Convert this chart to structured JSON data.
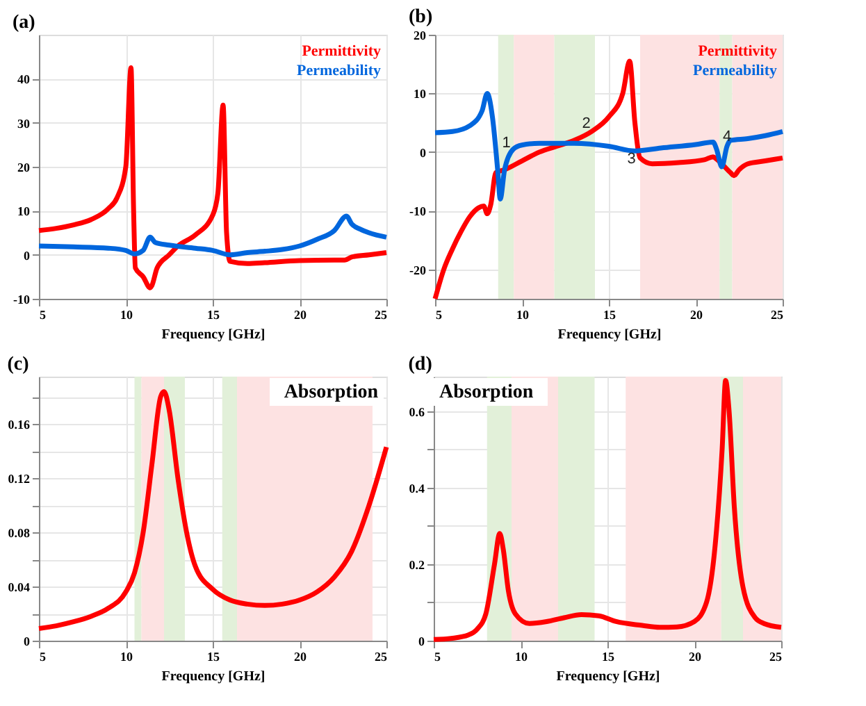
{
  "chart_data": [
    {
      "type": "line",
      "title": "(a)",
      "xlabel": "Frequency [GHz]",
      "xlim": [
        5,
        25
      ],
      "xticks": [
        5,
        10,
        15,
        20,
        25
      ],
      "ylim": [
        -10,
        50
      ],
      "yticks": [
        -10,
        0,
        10,
        20,
        30,
        40
      ],
      "grid": true,
      "legend": "top right",
      "series": [
        {
          "name": "Permittivity",
          "color": "#ff0000",
          "x": [
            5,
            6,
            7,
            8,
            9,
            9.5,
            10,
            10.3,
            10.45,
            10.55,
            11,
            11.4,
            11.5,
            11.8,
            12.5,
            13,
            14,
            15,
            15.3,
            15.6,
            15.8,
            16,
            17,
            18,
            20,
            22,
            22.6,
            23,
            24,
            25
          ],
          "values": [
            5.5,
            6,
            6.8,
            8,
            10.5,
            13,
            20,
            42.5,
            10,
            -3,
            -5,
            -7.5,
            -7,
            -3,
            0,
            2,
            4.5,
            9,
            14,
            34,
            5,
            -1.5,
            -2,
            -1.8,
            -1.3,
            -1.2,
            -1.2,
            -0.5,
            0,
            0.5
          ]
        },
        {
          "name": "Permeability",
          "color": "#0066dd",
          "x": [
            5,
            7,
            9,
            10,
            10.5,
            11,
            11.4,
            11.7,
            12.5,
            14,
            15,
            16,
            17,
            18,
            19,
            20,
            21,
            22,
            22.7,
            23,
            23.5,
            24,
            25
          ],
          "values": [
            2,
            1.8,
            1.5,
            1,
            0.2,
            1,
            4,
            2.8,
            2.2,
            1.5,
            1,
            0,
            0.5,
            0.8,
            1.2,
            2,
            3.5,
            5.5,
            8.8,
            7,
            5.8,
            5,
            4
          ]
        }
      ]
    },
    {
      "type": "line",
      "title": "(b)",
      "xlabel": "Frequency [GHz]",
      "xlim": [
        5,
        25
      ],
      "xticks": [
        5,
        10,
        15,
        20,
        25
      ],
      "ylim": [
        -25,
        20
      ],
      "yticks": [
        -20,
        -10,
        0,
        10,
        20
      ],
      "grid": true,
      "legend": "top right",
      "bands": [
        {
          "axis": "x",
          "from": 8.63,
          "to": 9.53,
          "color": "#e2f0d9"
        },
        {
          "axis": "x",
          "from": 9.53,
          "to": 11.86,
          "color": "#fde2e2"
        },
        {
          "axis": "x",
          "from": 11.86,
          "to": 14.2,
          "color": "#e2f0d9"
        },
        {
          "axis": "x",
          "from": 16.8,
          "to": 21.37,
          "color": "#fde2e2"
        },
        {
          "axis": "x",
          "from": 21.37,
          "to": 22.1,
          "color": "#e2f0d9"
        },
        {
          "axis": "x",
          "from": 22.1,
          "to": 25,
          "color": "#fde2e2"
        }
      ],
      "annotations": [
        {
          "text": "1",
          "x": 9.1,
          "y": 1.5
        },
        {
          "text": "2",
          "x": 13.7,
          "y": 4.8
        },
        {
          "text": "3",
          "x": 16.3,
          "y": -1.2
        },
        {
          "text": "4",
          "x": 21.8,
          "y": 2.6
        }
      ],
      "series": [
        {
          "name": "Permittivity",
          "color": "#ff0000",
          "x": [
            5,
            5.5,
            6,
            6.5,
            7,
            7.5,
            7.8,
            8,
            8.2,
            8.5,
            9,
            10,
            11,
            12,
            13,
            14,
            15,
            15.8,
            16.2,
            16.5,
            16.8,
            17.5,
            19,
            20.5,
            21,
            21.2,
            21.5,
            22,
            22.2,
            22.5,
            23,
            24,
            25
          ],
          "values": [
            -25,
            -20,
            -16.5,
            -13.5,
            -11,
            -9.5,
            -9.2,
            -10.5,
            -9,
            -3.5,
            -3,
            -1.5,
            0,
            1,
            2,
            3.5,
            6,
            10,
            15.5,
            5,
            -1,
            -2,
            -1.8,
            -1.3,
            -0.8,
            -1.2,
            -2,
            -3.5,
            -4,
            -3,
            -2,
            -1.5,
            -1
          ]
        },
        {
          "name": "Permeability",
          "color": "#0066dd",
          "x": [
            5,
            6,
            7,
            7.7,
            8,
            8.3,
            8.6,
            8.75,
            9,
            9.5,
            10,
            11,
            13,
            15,
            16.5,
            18,
            20,
            21,
            21.2,
            21.5,
            21.8,
            22,
            23,
            24,
            25
          ],
          "values": [
            3.3,
            3.5,
            4.5,
            7,
            10,
            6,
            -3,
            -8,
            -3,
            0.5,
            1.2,
            1.5,
            1.5,
            1,
            0.2,
            0.7,
            1.3,
            1.7,
            0.5,
            -2.5,
            1,
            2,
            2.3,
            2.8,
            3.5
          ]
        }
      ]
    },
    {
      "type": "line",
      "title": "(c)",
      "xlabel": "Frequency [GHz]",
      "xlim": [
        5,
        25
      ],
      "xticks": [
        5,
        10,
        15,
        20,
        25
      ],
      "ylim": [
        0,
        0.195
      ],
      "yticks": [
        0,
        {
          "value": 0.02,
          "label": null
        },
        0.04,
        {
          "value": 0.06,
          "label": null
        },
        0.08,
        {
          "value": 0.1,
          "label": null
        },
        0.12,
        {
          "value": 0.14,
          "label": null
        },
        0.16,
        {
          "value": 0.18,
          "label": null
        }
      ],
      "grid": true,
      "bands": [
        {
          "axis": "x",
          "from": 10.5,
          "to": 10.9,
          "color": "#e2f0d9"
        },
        {
          "axis": "x",
          "from": 10.9,
          "to": 12.2,
          "color": "#fde2e2"
        },
        {
          "axis": "x",
          "from": 12.2,
          "to": 13.4,
          "color": "#e2f0d9"
        },
        {
          "axis": "x",
          "from": 15.55,
          "to": 16.4,
          "color": "#e2f0d9"
        },
        {
          "axis": "x",
          "from": 16.4,
          "to": 24.2,
          "color": "#fde2e2"
        }
      ],
      "annotations": [
        "Absorption"
      ],
      "series": [
        {
          "color": "#ff0000",
          "x": [
            5,
            6,
            7,
            8,
            9,
            10,
            10.5,
            11,
            11.5,
            12,
            12.2,
            12.5,
            13,
            13.5,
            14,
            15,
            16,
            17,
            18,
            19,
            20,
            21,
            22,
            23,
            24,
            25
          ],
          "values": [
            0.009,
            0.011,
            0.014,
            0.018,
            0.024,
            0.036,
            0.05,
            0.08,
            0.13,
            0.18,
            0.184,
            0.17,
            0.12,
            0.08,
            0.055,
            0.038,
            0.03,
            0.027,
            0.026,
            0.027,
            0.03,
            0.036,
            0.047,
            0.066,
            0.1,
            0.143
          ]
        }
      ]
    },
    {
      "type": "line",
      "title": "(d)",
      "xlabel": "Frequency [GHz]",
      "xlim": [
        5,
        25
      ],
      "xticks": [
        5,
        10,
        15,
        20,
        25
      ],
      "ylim": [
        0,
        0.69
      ],
      "yticks": [
        0,
        {
          "value": 0.1,
          "label": null
        },
        0.2,
        {
          "value": 0.3,
          "label": null
        },
        0.4,
        {
          "value": 0.5,
          "label": null
        },
        0.6
      ],
      "grid": true,
      "bands": [
        {
          "axis": "x",
          "from": 8.07,
          "to": 9.48,
          "color": "#e2f0d9"
        },
        {
          "axis": "x",
          "from": 9.48,
          "to": 12.16,
          "color": "#fde2e2"
        },
        {
          "axis": "x",
          "from": 12.16,
          "to": 14.26,
          "color": "#e2f0d9"
        },
        {
          "axis": "x",
          "from": 16.05,
          "to": 21.55,
          "color": "#fde2e2"
        },
        {
          "axis": "x",
          "from": 21.55,
          "to": 22.8,
          "color": "#e2f0d9"
        },
        {
          "axis": "x",
          "from": 22.8,
          "to": 25,
          "color": "#fde2e2"
        }
      ],
      "annotations": [
        "Absorption"
      ],
      "series": [
        {
          "color": "#ff0000",
          "x": [
            5,
            6,
            7,
            7.5,
            8,
            8.5,
            8.8,
            9,
            9.3,
            9.7,
            10.5,
            11.5,
            12.5,
            13.5,
            14.5,
            15.5,
            17,
            18,
            19,
            20,
            20.7,
            21.2,
            21.6,
            21.8,
            22,
            22.3,
            22.8,
            23.5,
            24,
            25
          ],
          "values": [
            0.003,
            0.006,
            0.015,
            0.03,
            0.07,
            0.2,
            0.28,
            0.24,
            0.13,
            0.07,
            0.045,
            0.05,
            0.06,
            0.068,
            0.065,
            0.05,
            0.04,
            0.035,
            0.036,
            0.05,
            0.1,
            0.25,
            0.5,
            0.68,
            0.6,
            0.35,
            0.14,
            0.06,
            0.045,
            0.035
          ]
        }
      ]
    }
  ]
}
